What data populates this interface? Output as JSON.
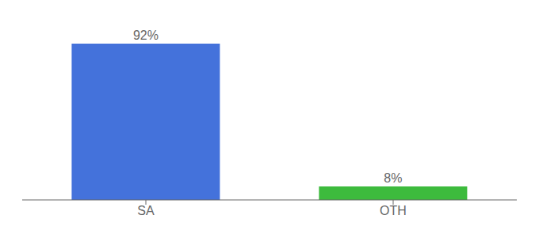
{
  "chart_data": {
    "type": "bar",
    "categories": [
      "SA",
      "OTH"
    ],
    "values": [
      92,
      8
    ],
    "value_labels": [
      "92%",
      "8%"
    ],
    "colors": [
      "#4472db",
      "#3dbb3d"
    ],
    "ylim": [
      0,
      100
    ],
    "data_labels": true,
    "tick_labels": "x",
    "grid": false
  }
}
